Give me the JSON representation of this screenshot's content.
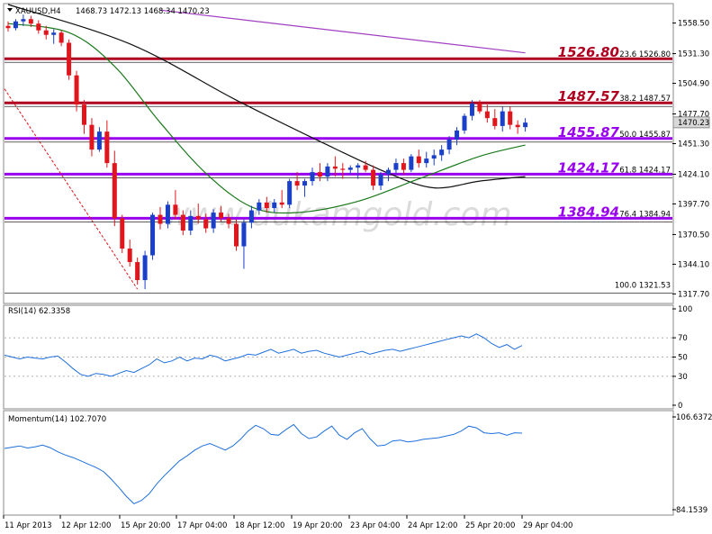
{
  "header": {
    "symbol": "XAUUSD,H4",
    "ohlc": "1468.73 1472.13 1468.34 1470.23"
  },
  "watermark": "www.dukamgold.com",
  "colors": {
    "frame": "#8a8a8a",
    "bull": "#1a3fc8",
    "bear": "#e0161c",
    "ma_fast": "#1b7a1b",
    "ma_mid": "#111111",
    "ma_slow": "#a040c0",
    "fib_red": "#b00020",
    "fib_purple": "#9900ee",
    "osc": "#1e6fdc"
  },
  "chart_data": [
    {
      "type": "candlestick",
      "title": "XAUUSD,H4",
      "y_ticks": [
        "1558.50",
        "1531.30",
        "1504.90",
        "1477.70",
        "1451.30",
        "1424.10",
        "1397.70",
        "1370.50",
        "1344.10",
        "1317.70"
      ],
      "y_range": [
        1310,
        1575
      ],
      "current_price": "1470.23",
      "candles": [
        [
          1556,
          1560,
          1551,
          1554
        ],
        [
          1554,
          1562,
          1552,
          1560
        ],
        [
          1560,
          1566,
          1556,
          1562
        ],
        [
          1562,
          1565,
          1555,
          1558
        ],
        [
          1558,
          1561,
          1549,
          1552
        ],
        [
          1552,
          1556,
          1544,
          1548
        ],
        [
          1548,
          1553,
          1540,
          1550
        ],
        [
          1550,
          1552,
          1538,
          1541
        ],
        [
          1541,
          1544,
          1508,
          1512
        ],
        [
          1512,
          1516,
          1480,
          1486
        ],
        [
          1486,
          1490,
          1460,
          1468
        ],
        [
          1468,
          1474,
          1440,
          1446
        ],
        [
          1446,
          1466,
          1444,
          1462
        ],
        [
          1462,
          1472,
          1430,
          1434
        ],
        [
          1434,
          1445,
          1378,
          1385
        ],
        [
          1385,
          1388,
          1354,
          1358
        ],
        [
          1358,
          1366,
          1342,
          1346
        ],
        [
          1346,
          1350,
          1326,
          1330
        ],
        [
          1330,
          1356,
          1322,
          1352
        ],
        [
          1352,
          1390,
          1348,
          1388
        ],
        [
          1388,
          1395,
          1375,
          1380
        ],
        [
          1380,
          1400,
          1376,
          1397
        ],
        [
          1397,
          1410,
          1384,
          1388
        ],
        [
          1388,
          1392,
          1370,
          1374
        ],
        [
          1374,
          1392,
          1370,
          1387
        ],
        [
          1387,
          1398,
          1380,
          1384
        ],
        [
          1384,
          1389,
          1372,
          1376
        ],
        [
          1376,
          1393,
          1372,
          1390
        ],
        [
          1390,
          1396,
          1382,
          1385
        ],
        [
          1385,
          1389,
          1376,
          1380
        ],
        [
          1380,
          1384,
          1356,
          1360
        ],
        [
          1360,
          1384,
          1340,
          1381
        ],
        [
          1381,
          1396,
          1376,
          1392
        ],
        [
          1392,
          1402,
          1388,
          1399
        ],
        [
          1399,
          1404,
          1390,
          1394
        ],
        [
          1394,
          1402,
          1390,
          1399
        ],
        [
          1399,
          1410,
          1394,
          1397
        ],
        [
          1397,
          1420,
          1394,
          1418
        ],
        [
          1418,
          1426,
          1410,
          1414
        ],
        [
          1414,
          1420,
          1404,
          1418
        ],
        [
          1418,
          1430,
          1414,
          1426
        ],
        [
          1426,
          1434,
          1418,
          1422
        ],
        [
          1422,
          1434,
          1418,
          1431
        ],
        [
          1431,
          1440,
          1422,
          1429
        ],
        [
          1429,
          1434,
          1420,
          1428
        ],
        [
          1428,
          1432,
          1424,
          1430
        ],
        [
          1430,
          1434,
          1420,
          1432
        ],
        [
          1432,
          1436,
          1426,
          1428
        ],
        [
          1428,
          1432,
          1410,
          1414
        ],
        [
          1414,
          1426,
          1410,
          1424
        ],
        [
          1424,
          1430,
          1418,
          1428
        ],
        [
          1428,
          1438,
          1424,
          1434
        ],
        [
          1434,
          1438,
          1424,
          1428
        ],
        [
          1428,
          1442,
          1426,
          1440
        ],
        [
          1440,
          1446,
          1430,
          1434
        ],
        [
          1434,
          1444,
          1430,
          1438
        ],
        [
          1438,
          1446,
          1432,
          1441
        ],
        [
          1441,
          1450,
          1436,
          1446
        ],
        [
          1446,
          1458,
          1442,
          1455
        ],
        [
          1455,
          1466,
          1450,
          1463
        ],
        [
          1463,
          1478,
          1460,
          1476
        ],
        [
          1476,
          1490,
          1472,
          1487
        ],
        [
          1487,
          1490,
          1478,
          1480
        ],
        [
          1480,
          1486,
          1470,
          1474
        ],
        [
          1474,
          1482,
          1464,
          1467
        ],
        [
          1467,
          1484,
          1462,
          1480
        ],
        [
          1480,
          1484,
          1464,
          1468
        ],
        [
          1468,
          1472,
          1460,
          1466
        ],
        [
          1466,
          1474,
          1462,
          1470
        ]
      ],
      "ma_fast": [
        [
          0,
          1558
        ],
        [
          8,
          1550
        ],
        [
          14,
          1520
        ],
        [
          20,
          1470
        ],
        [
          26,
          1425
        ],
        [
          32,
          1395
        ],
        [
          38,
          1390
        ],
        [
          46,
          1400
        ],
        [
          54,
          1420
        ],
        [
          62,
          1440
        ],
        [
          68,
          1450
        ]
      ],
      "ma_mid": [
        [
          0,
          1575
        ],
        [
          16,
          1540
        ],
        [
          30,
          1490
        ],
        [
          42,
          1450
        ],
        [
          50,
          1425
        ],
        [
          56,
          1412
        ],
        [
          62,
          1418
        ],
        [
          68,
          1422
        ]
      ],
      "ma_slow": [
        [
          20,
          1570
        ],
        [
          68,
          1532
        ]
      ],
      "fibonacci": [
        {
          "label": "23.6 1526.80",
          "big": "1526.80",
          "price": 1526.8,
          "color": "red"
        },
        {
          "label": "38.2 1487.57",
          "big": "1487.57",
          "price": 1487.57,
          "color": "red"
        },
        {
          "label": "50.0 1455.87",
          "big": "1455.87",
          "price": 1455.87,
          "color": "purple"
        },
        {
          "label": "61.8 1424.17",
          "big": "1424.17",
          "price": 1424.17,
          "color": "purple"
        },
        {
          "label": "76.4 1384.94",
          "big": "1384.94",
          "price": 1384.94,
          "color": "purple"
        },
        {
          "label": "100.0 1321.53",
          "big": "",
          "price": 1321.53,
          "color": "none"
        }
      ],
      "x_labels": [
        "11 Apr 2013",
        "12 Apr 12:00",
        "15 Apr 20:00",
        "17 Apr 04:00",
        "18 Apr 12:00",
        "19 Apr 20:00",
        "23 Apr 04:00",
        "24 Apr 12:00",
        "25 Apr 20:00",
        "29 Apr 04:00"
      ]
    },
    {
      "type": "line",
      "title": "RSI(14) 62.3358",
      "y_ticks": [
        "100",
        "70",
        "50",
        "30",
        "0"
      ],
      "ylim": [
        0,
        100
      ],
      "values": [
        52,
        50,
        48,
        50,
        49,
        48,
        50,
        51,
        45,
        38,
        32,
        30,
        33,
        32,
        30,
        33,
        36,
        34,
        38,
        42,
        48,
        44,
        46,
        50,
        46,
        49,
        48,
        52,
        50,
        46,
        48,
        50,
        53,
        52,
        55,
        58,
        54,
        56,
        58,
        54,
        56,
        57,
        54,
        52,
        50,
        52,
        54,
        56,
        53,
        55,
        57,
        58,
        56,
        58,
        60,
        62,
        64,
        66,
        68,
        70,
        72,
        70,
        74,
        70,
        64,
        60,
        63,
        58,
        62
      ]
    },
    {
      "type": "line",
      "title": "Momentum(14) 102.7070",
      "y_ticks": [
        "106.6372",
        "84.1539"
      ],
      "ylim": [
        84.1539,
        106.6372
      ],
      "values": [
        99,
        99.3,
        99.6,
        99.1,
        99.4,
        99.8,
        99.2,
        98.2,
        97.4,
        96.8,
        96,
        95.2,
        94.4,
        93.4,
        91.6,
        89.6,
        87.4,
        85.6,
        86.4,
        88,
        90.4,
        92.4,
        94.2,
        96,
        97.2,
        98.6,
        99.6,
        100.2,
        99.4,
        98.6,
        99.6,
        101.2,
        103.2,
        104.6,
        103.8,
        102.4,
        102.2,
        103.6,
        104.8,
        102.6,
        101.4,
        101.8,
        103.2,
        104.4,
        102.2,
        101.2,
        102.8,
        103.8,
        101.4,
        99.6,
        99.8,
        100.8,
        101,
        100.6,
        100.8,
        101.2,
        101.4,
        101.6,
        102,
        102.4,
        103.2,
        104.4,
        104,
        102.8,
        102.6,
        102.8,
        102.2,
        102.8,
        102.7
      ]
    }
  ]
}
